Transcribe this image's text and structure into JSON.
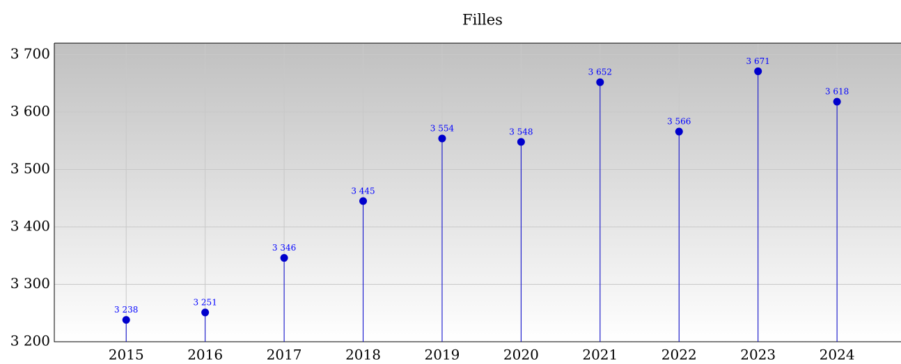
{
  "chart_data": {
    "type": "stem",
    "title": "Filles",
    "x": [
      2015,
      2016,
      2017,
      2018,
      2019,
      2020,
      2021,
      2022,
      2023,
      2024
    ],
    "values": [
      3238,
      3251,
      3346,
      3445,
      3554,
      3548,
      3652,
      3566,
      3671,
      3618
    ],
    "value_labels": [
      "3 238",
      "3 251",
      "3 346",
      "3 445",
      "3 554",
      "3 548",
      "3 652",
      "3 566",
      "3 671",
      "3 618"
    ],
    "color": "#0000cc",
    "xlim": [
      2014.09,
      2024.81
    ],
    "xticks": [
      2015,
      2016,
      2017,
      2018,
      2019,
      2020,
      2021,
      2022,
      2023,
      2024
    ],
    "ylim": [
      3200,
      3720
    ],
    "yticks": [
      {
        "value": 3200,
        "label": "3 200"
      },
      {
        "value": 3300,
        "label": "3 300"
      },
      {
        "value": 3400,
        "label": "3 400"
      },
      {
        "value": 3500,
        "label": "3 500"
      },
      {
        "value": 3600,
        "label": "3 600"
      },
      {
        "value": 3700,
        "label": "3 700"
      }
    ],
    "grid": true
  }
}
